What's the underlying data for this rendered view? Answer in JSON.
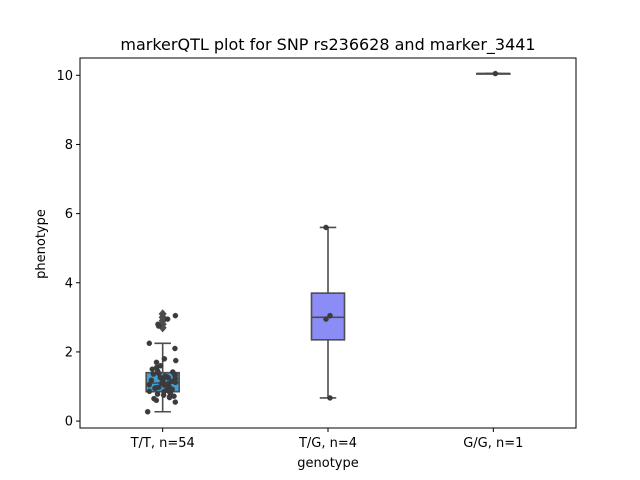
{
  "chart_data": {
    "type": "box",
    "title": "markerQTL plot for SNP rs236628 and marker_3441",
    "xlabel": "genotype",
    "ylabel": "phenotype",
    "ylim": [
      -0.2,
      10.5
    ],
    "yticks": [
      0,
      2,
      4,
      6,
      8,
      10
    ],
    "categories": [
      "T/T, n=54",
      "T/G, n=4",
      "G/G, n=1"
    ],
    "grid": false,
    "groups": [
      {
        "label": "T/T, n=54",
        "color": "#3f9fd8",
        "box": {
          "whisker_low": 0.27,
          "q1": 0.85,
          "median": 1.1,
          "q3": 1.4,
          "whisker_high": 2.25
        },
        "outliers": [
          2.7,
          2.8,
          2.9,
          3.0,
          3.1
        ],
        "points": [
          0.27,
          0.55,
          0.6,
          0.65,
          0.7,
          0.75,
          0.78,
          0.8,
          0.82,
          0.85,
          0.88,
          0.9,
          0.92,
          0.95,
          0.98,
          1.0,
          1.02,
          1.05,
          1.08,
          1.1,
          1.12,
          1.15,
          1.18,
          1.2,
          1.22,
          1.25,
          1.28,
          1.3,
          1.32,
          1.35,
          1.38,
          1.4,
          1.42,
          1.45,
          1.5,
          1.55,
          1.6,
          1.7,
          1.75,
          1.8,
          0.68,
          0.72,
          0.86,
          0.96,
          1.04,
          1.14,
          1.26,
          1.36,
          2.1,
          2.25,
          2.75,
          2.8,
          2.95,
          3.05
        ]
      },
      {
        "label": "T/G, n=4",
        "color": "#8c8cf7",
        "box": {
          "whisker_low": 0.67,
          "q1": 2.35,
          "median": 3.0,
          "q3": 3.7,
          "whisker_high": 5.6
        },
        "outliers": [],
        "points": [
          0.67,
          2.95,
          3.05,
          5.6
        ]
      },
      {
        "label": "G/G, n=1",
        "color": "#888888",
        "box": {
          "whisker_low": 10.05,
          "q1": 10.05,
          "median": 10.05,
          "q3": 10.05,
          "whisker_high": 10.05
        },
        "outliers": [],
        "points": [
          10.05
        ]
      }
    ]
  }
}
